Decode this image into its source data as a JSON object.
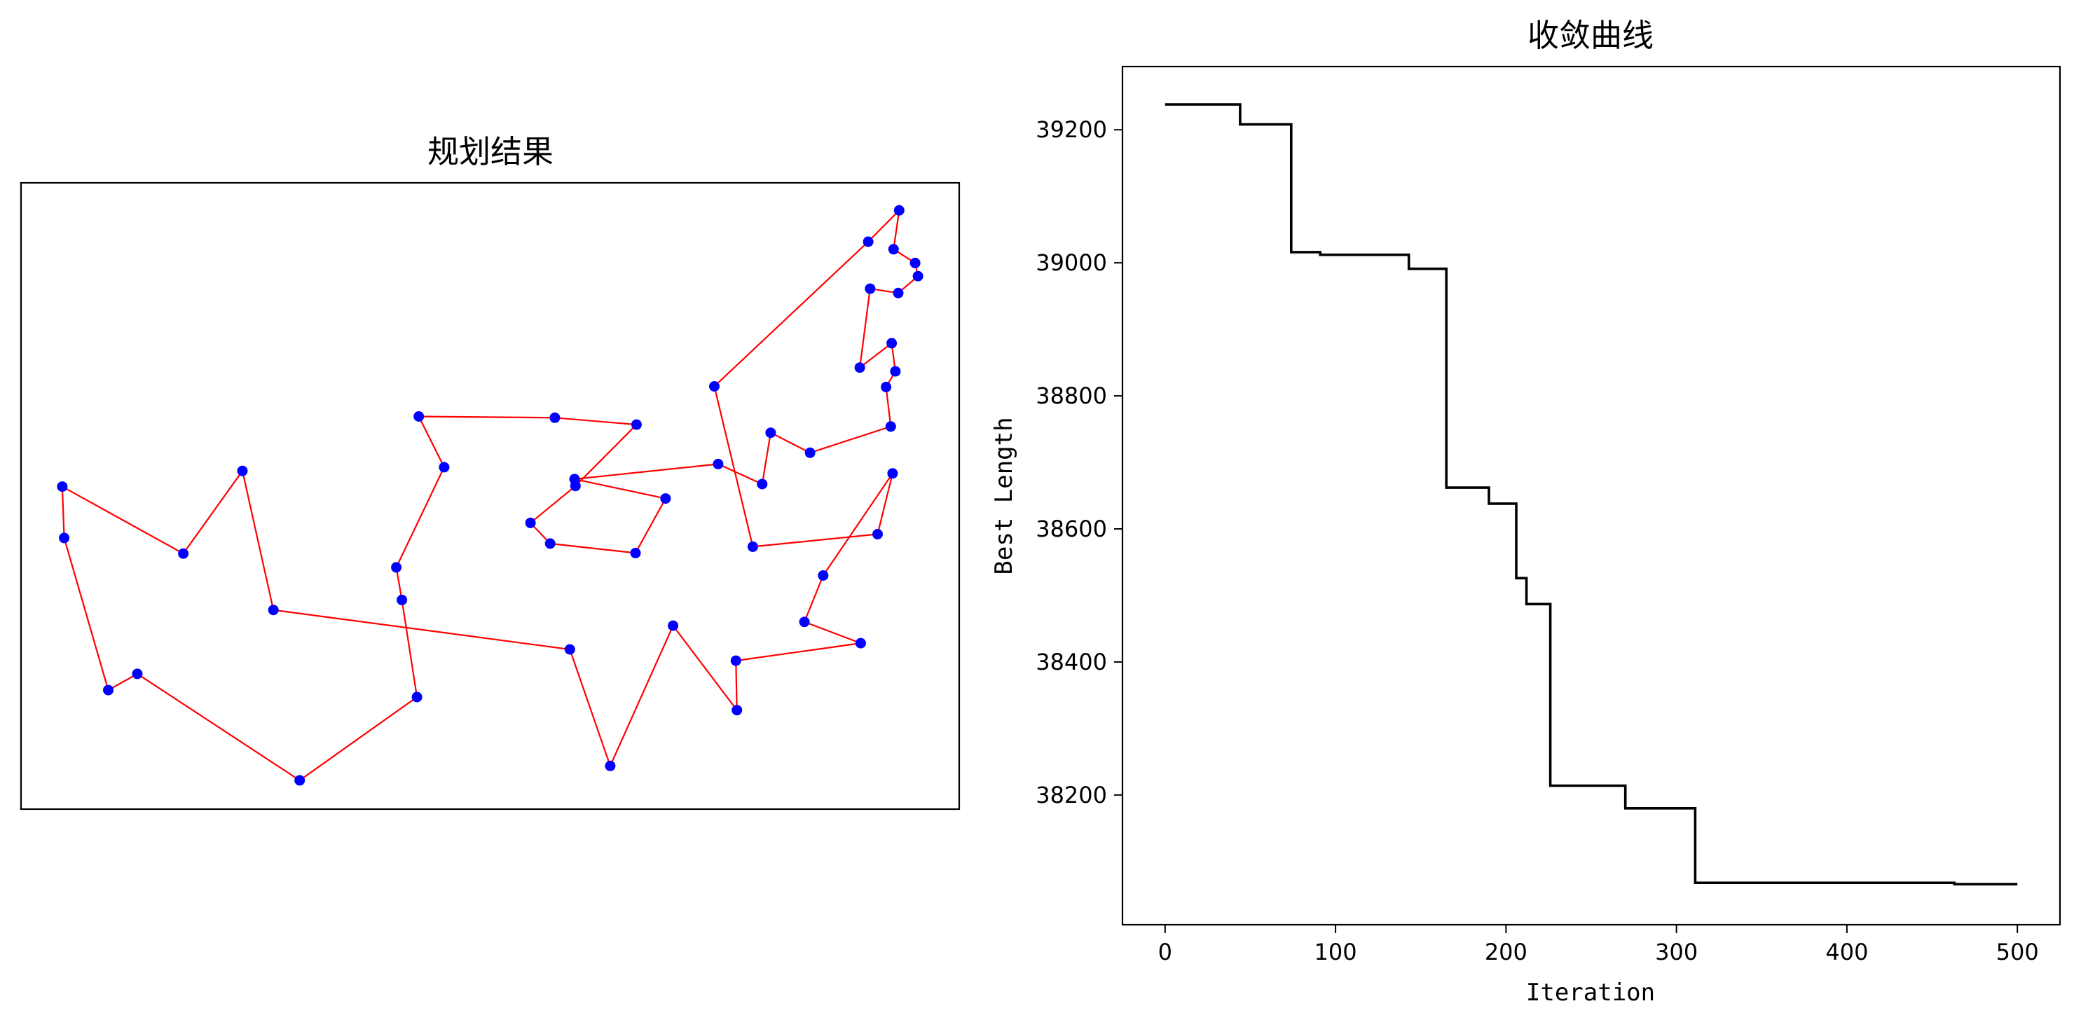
{
  "chart_data": [
    {
      "type": "line",
      "title": "规划结果",
      "xlabel": "",
      "ylabel": "",
      "axes_ticks_visible": false,
      "grid": false,
      "point_color": "#0000ff",
      "line_color": "#ff0000",
      "xlim": [
        0,
        100
      ],
      "ylim": [
        0,
        100
      ],
      "route_closed": true,
      "route": [
        [
          91.3,
          90.3
        ],
        [
          87.3,
          86.3
        ],
        [
          89.3,
          89.3
        ],
        [
          91.3,
          83.3
        ],
        [
          92.5,
          86.3
        ],
        [
          93.0,
          79.5
        ],
        [
          92.3,
          81.3
        ],
        [
          93.3,
          73.5
        ],
        [
          92.7,
          77.6
        ],
        [
          91.9,
          73.0
        ],
        [
          93.4,
          66.5
        ],
        [
          93.6,
          64.3
        ],
        [
          93.1,
          61.7
        ],
        [
          86.7,
          56.2
        ],
        [
          84.5,
          57.6
        ],
        [
          91.2,
          54.3
        ],
        [
          88.3,
          49.2
        ],
        [
          89.0,
          39.9
        ],
        [
          84.5,
          36.6
        ],
        [
          85.0,
          33.3
        ],
        [
          84.5,
          29.6
        ],
        [
          86.1,
          27.7
        ],
        [
          89.5,
          15.2
        ],
        [
          89.4,
          13.3
        ],
        [
          86.2,
          7.9
        ],
        [
          87.0,
          2.4
        ],
        [
          91.4,
          2.2
        ],
        [
          89.5,
          12.1
        ],
        [
          91.0,
          1.3
        ],
        [
          93.1,
          12.1
        ],
        [
          91.8,
          17.3
        ]
      ],
      "route_full": [
        [
          93.6,
          95.6
        ],
        [
          93.0,
          89.4
        ],
        [
          95.3,
          87.2
        ],
        [
          95.6,
          85.1
        ],
        [
          93.5,
          82.4
        ],
        [
          90.5,
          83.1
        ],
        [
          89.4,
          70.5
        ],
        [
          92.8,
          74.4
        ],
        [
          93.2,
          69.9
        ],
        [
          92.2,
          67.4
        ],
        [
          92.7,
          61.1
        ],
        [
          84.1,
          56.9
        ],
        [
          79.9,
          60.1
        ],
        [
          79.0,
          51.9
        ],
        [
          74.3,
          55.1
        ],
        [
          59.0,
          52.7
        ],
        [
          68.7,
          49.6
        ],
        [
          65.5,
          40.9
        ],
        [
          56.4,
          42.4
        ],
        [
          54.3,
          45.7
        ],
        [
          59.1,
          51.6
        ],
        [
          65.6,
          61.4
        ],
        [
          56.9,
          62.5
        ],
        [
          42.4,
          62.7
        ],
        [
          45.1,
          54.6
        ],
        [
          40.0,
          38.6
        ],
        [
          40.6,
          33.4
        ],
        [
          42.2,
          17.9
        ],
        [
          29.7,
          4.6
        ],
        [
          12.4,
          21.6
        ],
        [
          9.3,
          19.0
        ],
        [
          4.6,
          43.3
        ],
        [
          4.4,
          51.5
        ],
        [
          17.3,
          40.8
        ],
        [
          23.6,
          54.0
        ],
        [
          26.9,
          31.8
        ],
        [
          58.5,
          25.5
        ],
        [
          62.8,
          6.9
        ],
        [
          69.5,
          29.3
        ],
        [
          76.3,
          15.8
        ],
        [
          76.2,
          23.7
        ],
        [
          89.5,
          26.5
        ],
        [
          83.5,
          29.9
        ],
        [
          85.5,
          37.3
        ],
        [
          92.9,
          53.6
        ],
        [
          91.3,
          43.9
        ],
        [
          78.0,
          41.9
        ],
        [
          73.9,
          67.5
        ],
        [
          90.3,
          90.6
        ],
        [
          93.6,
          95.6
        ]
      ]
    },
    {
      "type": "line",
      "title": "收敛曲线",
      "xlabel": "Iteration",
      "ylabel": "Best Length",
      "grid": false,
      "line_color": "#000000",
      "xlim": [
        -25,
        525
      ],
      "ylim": [
        38005,
        39295
      ],
      "xticks": [
        0,
        100,
        200,
        300,
        400,
        500
      ],
      "yticks": [
        38200,
        38400,
        38600,
        38800,
        39000,
        39200
      ],
      "step_series": [
        [
          0,
          39238
        ],
        [
          44,
          39238
        ],
        [
          44,
          39208
        ],
        [
          74,
          39208
        ],
        [
          74,
          39016
        ],
        [
          91,
          39016
        ],
        [
          91,
          39012
        ],
        [
          143,
          39012
        ],
        [
          143,
          38991
        ],
        [
          165,
          38991
        ],
        [
          165,
          38662
        ],
        [
          190,
          38662
        ],
        [
          190,
          38638
        ],
        [
          206,
          38638
        ],
        [
          206,
          38526
        ],
        [
          212,
          38526
        ],
        [
          212,
          38487
        ],
        [
          226,
          38487
        ],
        [
          226,
          38214
        ],
        [
          270,
          38214
        ],
        [
          270,
          38180
        ],
        [
          311,
          38180
        ],
        [
          311,
          38068
        ],
        [
          463,
          38068
        ],
        [
          463,
          38066
        ],
        [
          500,
          38066
        ]
      ]
    }
  ]
}
